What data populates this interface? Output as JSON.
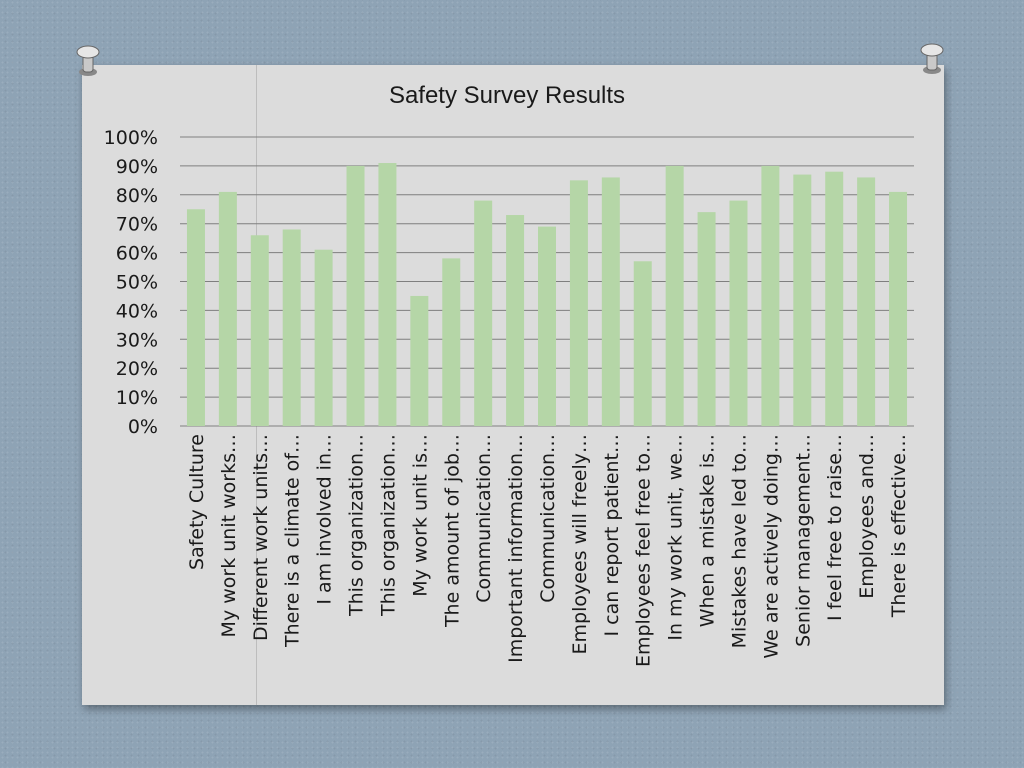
{
  "chart_data": {
    "type": "bar",
    "title": "Safety Survey Results",
    "xlabel": "",
    "ylabel": "",
    "ylim": [
      0,
      100
    ],
    "y_ticks": [
      "0%",
      "10%",
      "20%",
      "30%",
      "40%",
      "50%",
      "60%",
      "70%",
      "80%",
      "90%",
      "100%"
    ],
    "categories": [
      "Safety Culture",
      "My work unit works…",
      "Different work units…",
      "There is a climate of…",
      "I am involved in…",
      "This organization…",
      "This organization…",
      "My work unit is…",
      "The amount of job…",
      "Communication…",
      "Important information…",
      "Communication…",
      "Employees will freely…",
      "I can report patient…",
      "Employees feel free to…",
      "In my work unit, we…",
      "When a mistake is…",
      "Mistakes have led to…",
      "We are actively doing…",
      "Senior management…",
      "I feel free to raise…",
      "Employees and…",
      "There is effective…"
    ],
    "values": [
      75,
      81,
      66,
      68,
      61,
      90,
      91,
      45,
      58,
      78,
      73,
      69,
      85,
      86,
      57,
      90,
      74,
      78,
      90,
      87,
      88,
      86,
      81
    ],
    "grid": true,
    "legend": "none",
    "bar_color": "#b5d6a7"
  },
  "colors": {
    "card": "#dcdcdc",
    "background": "#8ea3b5",
    "gridline": "#7f7f7f",
    "text": "#1a1a1a"
  },
  "icons": [
    "pushpin-icon",
    "pushpin-icon"
  ]
}
